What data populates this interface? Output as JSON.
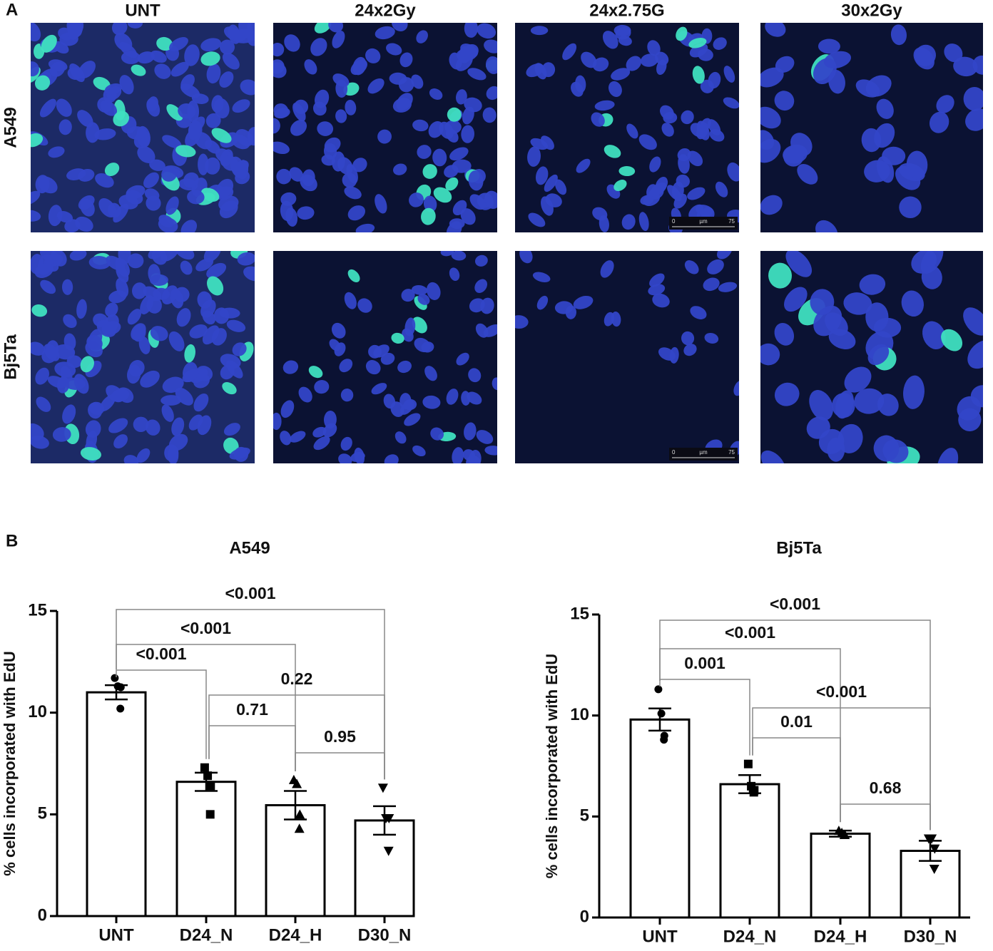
{
  "panel_a": {
    "label": "A",
    "columns": [
      "UNT",
      "24x2Gy",
      "24x2.75G",
      "30x2Gy"
    ],
    "rows": [
      "A549",
      "Bj5Ta"
    ],
    "scale_bar": {
      "start": "0",
      "unit": "µm",
      "end": "75"
    }
  },
  "panel_b": {
    "label": "B"
  },
  "chart_data": [
    {
      "type": "bar",
      "title": "A549",
      "y_label": "% cells incorporated with EdU",
      "categories": [
        "UNT",
        "D24_N",
        "D24_H",
        "D30_N"
      ],
      "values": [
        11.0,
        6.6,
        5.45,
        4.7
      ],
      "errors": [
        0.35,
        0.45,
        0.7,
        0.7
      ],
      "points": [
        [
          11.7,
          11.3,
          11.25,
          10.2
        ],
        [
          7.3,
          6.9,
          6.4,
          5.0
        ],
        [
          6.7,
          6.5,
          5.0,
          4.3
        ],
        [
          6.3,
          4.8,
          4.8,
          3.2
        ]
      ],
      "color": "#ffffff",
      "ylim": [
        0,
        15
      ],
      "yticks": [
        0,
        5,
        10,
        15
      ],
      "comparisons": [
        {
          "from": "UNT",
          "to": "D30_N",
          "label": "<0.001"
        },
        {
          "from": "UNT",
          "to": "D24_H",
          "label": "<0.001"
        },
        {
          "from": "UNT",
          "to": "D24_N",
          "label": "<0.001"
        },
        {
          "from": "D24_N",
          "to": "D30_N",
          "label": "0.22"
        },
        {
          "from": "D24_N",
          "to": "D24_H",
          "label": "0.71"
        },
        {
          "from": "D24_H",
          "to": "D30_N",
          "label": "0.95"
        }
      ]
    },
    {
      "type": "bar",
      "title": "Bj5Ta",
      "y_label": "% cells incorporated with EdU",
      "categories": [
        "UNT",
        "D24_N",
        "D24_H",
        "D30_N"
      ],
      "values": [
        9.8,
        6.6,
        4.15,
        3.3
      ],
      "errors": [
        0.55,
        0.45,
        0.15,
        0.5
      ],
      "points": [
        [
          11.3,
          10.1,
          9.0,
          8.8
        ],
        [
          7.6,
          6.5,
          6.3,
          6.2
        ],
        [
          4.3,
          4.2,
          4.1,
          4.1
        ],
        [
          3.9,
          3.9,
          3.4,
          2.4
        ]
      ],
      "color": "#ffffff",
      "ylim": [
        0,
        15
      ],
      "yticks": [
        0,
        5,
        10,
        15
      ],
      "comparisons": [
        {
          "from": "UNT",
          "to": "D30_N",
          "label": "<0.001"
        },
        {
          "from": "UNT",
          "to": "D24_H",
          "label": "<0.001"
        },
        {
          "from": "UNT",
          "to": "D24_N",
          "label": "0.001"
        },
        {
          "from": "D24_N",
          "to": "D30_N",
          "label": "<0.001"
        },
        {
          "from": "D24_N",
          "to": "D24_H",
          "label": "0.01"
        },
        {
          "from": "D24_H",
          "to": "D30_N",
          "label": "0.68"
        }
      ]
    }
  ]
}
